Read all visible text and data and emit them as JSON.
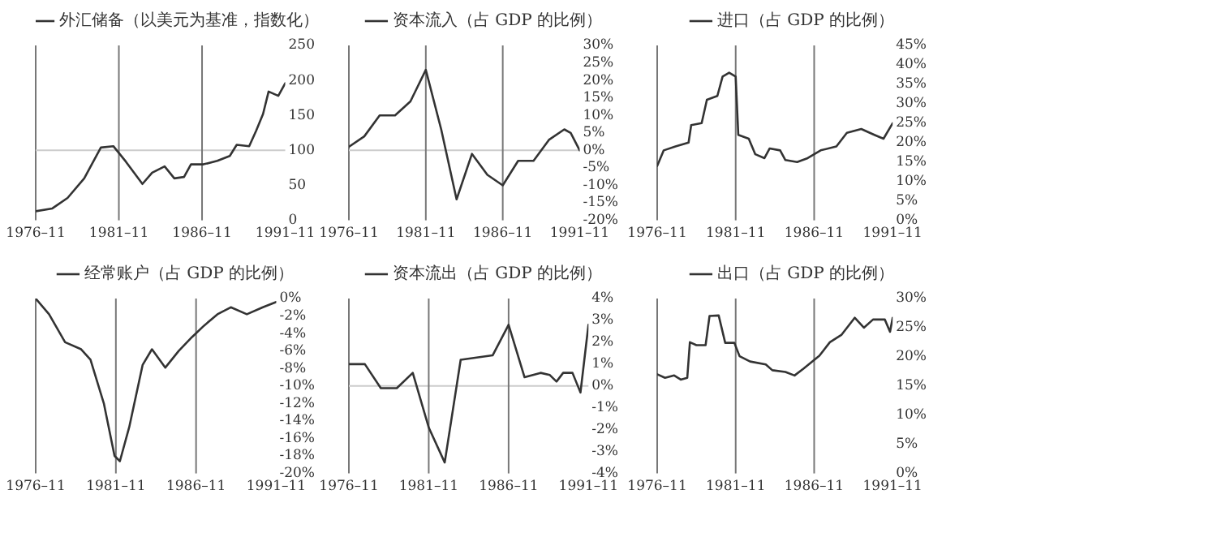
{
  "chart_data": [
    {
      "type": "line",
      "marker": "none",
      "legend": "top",
      "x": [
        "1976-11",
        "1977-11",
        "1978-10",
        "1979-10",
        "1980-10",
        "1981-07",
        "1982-04",
        "1983-04",
        "1983-11",
        "1984-08",
        "1985-03",
        "1985-10",
        "1986-03",
        "1986-12",
        "1987-10",
        "1988-07",
        "1988-12",
        "1989-09",
        "1990-02",
        "1990-07",
        "1990-11",
        "1991-06",
        "1991-11"
      ],
      "series": [
        {
          "name": "外汇储备（以美元为基准，指数化）",
          "color": "#333333",
          "values": [
            13,
            17,
            32,
            60,
            104,
            106,
            84,
            52,
            68,
            77,
            60,
            62,
            80,
            80,
            85,
            92,
            108,
            106,
            128,
            152,
            184,
            178,
            196
          ]
        }
      ],
      "xlim": [
        "1976-11",
        "1991-11"
      ],
      "xticks": [
        {
          "value": "1976-11",
          "label": "1976–11"
        },
        {
          "value": "1981-11",
          "label": "1981–11"
        },
        {
          "value": "1986-11",
          "label": "1986–11"
        },
        {
          "value": "1991-11",
          "label": "1991–11"
        }
      ],
      "ylim": [
        0,
        250
      ],
      "yticks": [
        0,
        50,
        100,
        150,
        200,
        250
      ],
      "ref_lines": [
        {
          "axis": "y",
          "value": 100,
          "color": "#cccccc"
        },
        {
          "axis": "x",
          "value": "1981-11",
          "color": "#777777"
        },
        {
          "axis": "x",
          "value": "1986-11",
          "color": "#777777"
        }
      ]
    },
    {
      "type": "line",
      "marker": "none",
      "legend": "top",
      "x": [
        "1976-11",
        "1977-11",
        "1978-11",
        "1979-11",
        "1980-11",
        "1981-11",
        "1982-11",
        "1983-11",
        "1984-11",
        "1985-11",
        "1986-11",
        "1987-11",
        "1988-11",
        "1989-11",
        "1990-11",
        "1991-04",
        "1991-11"
      ],
      "series": [
        {
          "name": "资本流入（占 GDP 的比例）",
          "color": "#333333",
          "values": [
            1,
            4,
            10,
            10,
            14,
            23,
            6,
            -14,
            -1,
            -7,
            -10,
            -3,
            -3,
            3,
            6,
            5,
            0
          ]
        }
      ],
      "xlim": [
        "1976-11",
        "1991-11"
      ],
      "xticks": [
        {
          "value": "1976-11",
          "label": "1976–11"
        },
        {
          "value": "1981-11",
          "label": "1981–11"
        },
        {
          "value": "1986-11",
          "label": "1986–11"
        },
        {
          "value": "1991-11",
          "label": "1991–11"
        }
      ],
      "ylim": [
        -20,
        30
      ],
      "yticks": [
        {
          "value": 30,
          "label": "30%"
        },
        {
          "value": 25,
          "label": "25%"
        },
        {
          "value": 20,
          "label": "20%"
        },
        {
          "value": 15,
          "label": "15%"
        },
        {
          "value": 10,
          "label": "10%"
        },
        {
          "value": 5,
          "label": "5%"
        },
        {
          "value": 0,
          "label": "0%"
        },
        {
          "value": -5,
          "label": "-5%"
        },
        {
          "value": -10,
          "label": "-10%"
        },
        {
          "value": -15,
          "label": "-15%"
        },
        {
          "value": -20,
          "label": "-20%"
        }
      ],
      "ref_lines": [
        {
          "axis": "y",
          "value": 0,
          "color": "#cccccc"
        },
        {
          "axis": "x",
          "value": "1981-11",
          "color": "#777777"
        },
        {
          "axis": "x",
          "value": "1986-11",
          "color": "#777777"
        }
      ]
    },
    {
      "type": "line",
      "marker": "none",
      "legend": "top",
      "x": [
        "1976-11",
        "1977-04",
        "1978-01",
        "1978-11",
        "1979-01",
        "1979-09",
        "1980-01",
        "1980-09",
        "1981-01",
        "1981-06",
        "1981-11",
        "1982-01",
        "1982-09",
        "1983-02",
        "1983-09",
        "1984-01",
        "1984-09",
        "1985-01",
        "1985-10",
        "1986-06",
        "1987-04",
        "1988-04",
        "1988-12",
        "1989-11",
        "1990-09",
        "1991-04",
        "1991-11"
      ],
      "series": [
        {
          "name": "进口（占 GDP 的比例）",
          "color": "#333333",
          "values": [
            14,
            18,
            19,
            20,
            24.5,
            25,
            31,
            32,
            37,
            38,
            37,
            22,
            21,
            17,
            16,
            18.5,
            18,
            15.5,
            15,
            16,
            18,
            19,
            22.5,
            23.5,
            22,
            21,
            25
          ]
        }
      ],
      "xlim": [
        "1976-11",
        "1991-11"
      ],
      "xticks": [
        {
          "value": "1976-11",
          "label": "1976–11"
        },
        {
          "value": "1981-11",
          "label": "1981–11"
        },
        {
          "value": "1986-11",
          "label": "1986–11"
        },
        {
          "value": "1991-11",
          "label": "1991–11"
        }
      ],
      "ylim": [
        0,
        45
      ],
      "yticks": [
        {
          "value": 45,
          "label": "45%"
        },
        {
          "value": 40,
          "label": "40%"
        },
        {
          "value": 35,
          "label": "35%"
        },
        {
          "value": 30,
          "label": "30%"
        },
        {
          "value": 25,
          "label": "25%"
        },
        {
          "value": 20,
          "label": "20%"
        },
        {
          "value": 15,
          "label": "15%"
        },
        {
          "value": 10,
          "label": "10%"
        },
        {
          "value": 5,
          "label": "5%"
        },
        {
          "value": 0,
          "label": "0%"
        }
      ],
      "ref_lines": [
        {
          "axis": "x",
          "value": "1981-11",
          "color": "#777777"
        },
        {
          "axis": "x",
          "value": "1986-11",
          "color": "#777777"
        }
      ]
    },
    {
      "type": "line",
      "marker": "none",
      "legend": "top",
      "x": [
        "1976-11",
        "1977-09",
        "1978-09",
        "1979-09",
        "1980-04",
        "1981-02",
        "1981-10",
        "1982-02",
        "1982-09",
        "1983-07",
        "1984-02",
        "1984-12",
        "1985-10",
        "1986-08",
        "1987-05",
        "1988-03",
        "1989-01",
        "1990-01",
        "1991-01",
        "1991-11"
      ],
      "series": [
        {
          "name": "经常账户（占 GDP 的比例）",
          "color": "#333333",
          "values": [
            0,
            -1.8,
            -5,
            -5.8,
            -7,
            -12,
            -18,
            -18.6,
            -14.7,
            -7.6,
            -5.8,
            -7.9,
            -6,
            -4.4,
            -3.1,
            -1.8,
            -1,
            -1.8,
            -1,
            -0.4
          ]
        }
      ],
      "xlim": [
        "1976-11",
        "1991-11"
      ],
      "xticks": [
        {
          "value": "1976-11",
          "label": "1976–11"
        },
        {
          "value": "1981-11",
          "label": "1981–11"
        },
        {
          "value": "1986-11",
          "label": "1986–11"
        },
        {
          "value": "1991-11",
          "label": "1991–11"
        }
      ],
      "ylim": [
        -20,
        0
      ],
      "yticks": [
        {
          "value": 0,
          "label": "0%"
        },
        {
          "value": -2,
          "label": "-2%"
        },
        {
          "value": -4,
          "label": "-4%"
        },
        {
          "value": -6,
          "label": "-6%"
        },
        {
          "value": -8,
          "label": "-8%"
        },
        {
          "value": -10,
          "label": "-10%"
        },
        {
          "value": -12,
          "label": "-12%"
        },
        {
          "value": -14,
          "label": "-14%"
        },
        {
          "value": -16,
          "label": "-16%"
        },
        {
          "value": -18,
          "label": "-18%"
        },
        {
          "value": -20,
          "label": "-20%"
        }
      ],
      "ref_lines": [
        {
          "axis": "x",
          "value": "1981-11",
          "color": "#777777"
        },
        {
          "axis": "x",
          "value": "1986-11",
          "color": "#777777"
        }
      ]
    },
    {
      "type": "line",
      "marker": "none",
      "legend": "top",
      "x": [
        "1976-11",
        "1977-11",
        "1978-11",
        "1979-11",
        "1980-11",
        "1981-11",
        "1982-11",
        "1983-11",
        "1984-11",
        "1985-11",
        "1986-11",
        "1987-11",
        "1988-11",
        "1989-06",
        "1989-11",
        "1990-04",
        "1990-11",
        "1991-05",
        "1991-11"
      ],
      "series": [
        {
          "name": "资本流出（占 GDP 的比例）",
          "color": "#333333",
          "values": [
            1.0,
            1.0,
            -0.1,
            -0.1,
            0.6,
            -1.9,
            -3.5,
            1.2,
            1.3,
            1.4,
            2.8,
            0.4,
            0.6,
            0.5,
            0.2,
            0.6,
            0.6,
            -0.3,
            2.8
          ]
        }
      ],
      "xlim": [
        "1976-11",
        "1991-11"
      ],
      "xticks": [
        {
          "value": "1976-11",
          "label": "1976–11"
        },
        {
          "value": "1981-11",
          "label": "1981–11"
        },
        {
          "value": "1986-11",
          "label": "1986–11"
        },
        {
          "value": "1991-11",
          "label": "1991–11"
        }
      ],
      "ylim": [
        -4,
        4
      ],
      "yticks": [
        {
          "value": 4,
          "label": "4%"
        },
        {
          "value": 3,
          "label": "3%"
        },
        {
          "value": 2,
          "label": "2%"
        },
        {
          "value": 1,
          "label": "1%"
        },
        {
          "value": 0,
          "label": "0%"
        },
        {
          "value": -1,
          "label": "-1%"
        },
        {
          "value": -2,
          "label": "-2%"
        },
        {
          "value": -3,
          "label": "-3%"
        },
        {
          "value": -4,
          "label": "-4%"
        }
      ],
      "ref_lines": [
        {
          "axis": "y",
          "value": 0,
          "color": "#cccccc"
        },
        {
          "axis": "x",
          "value": "1981-11",
          "color": "#777777"
        },
        {
          "axis": "x",
          "value": "1986-11",
          "color": "#777777"
        }
      ]
    },
    {
      "type": "line",
      "marker": "none",
      "legend": "top",
      "x": [
        "1976-11",
        "1977-05",
        "1977-12",
        "1978-05",
        "1978-10",
        "1978-12",
        "1979-05",
        "1979-12",
        "1980-03",
        "1980-10",
        "1981-03",
        "1981-10",
        "1982-02",
        "1982-10",
        "1983-10",
        "1984-03",
        "1985-01",
        "1985-08",
        "1986-03",
        "1987-03",
        "1987-11",
        "1988-08",
        "1989-06",
        "1990-01",
        "1990-08",
        "1991-05",
        "1991-09",
        "1991-11"
      ],
      "series": [
        {
          "name": "出口（占 GDP 的比例）",
          "color": "#333333",
          "values": [
            17,
            16.4,
            16.8,
            16.1,
            16.4,
            22.5,
            22,
            22,
            27,
            27.1,
            22.4,
            22.4,
            20.1,
            19.2,
            18.7,
            17.7,
            17.4,
            16.8,
            18,
            20.2,
            22.5,
            23.8,
            26.7,
            25,
            26.4,
            26.4,
            24.3,
            26.7
          ]
        }
      ],
      "xlim": [
        "1976-11",
        "1991-11"
      ],
      "xticks": [
        {
          "value": "1976-11",
          "label": "1976–11"
        },
        {
          "value": "1981-11",
          "label": "1981–11"
        },
        {
          "value": "1986-11",
          "label": "1986–11"
        },
        {
          "value": "1991-11",
          "label": "1991–11"
        }
      ],
      "ylim": [
        0,
        30
      ],
      "yticks": [
        {
          "value": 30,
          "label": "30%"
        },
        {
          "value": 25,
          "label": "25%"
        },
        {
          "value": 20,
          "label": "20%"
        },
        {
          "value": 15,
          "label": "15%"
        },
        {
          "value": 10,
          "label": "10%"
        },
        {
          "value": 5,
          "label": "5%"
        },
        {
          "value": 0,
          "label": "0%"
        }
      ],
      "ref_lines": [
        {
          "axis": "x",
          "value": "1981-11",
          "color": "#777777"
        },
        {
          "axis": "x",
          "value": "1986-11",
          "color": "#777777"
        }
      ]
    }
  ]
}
